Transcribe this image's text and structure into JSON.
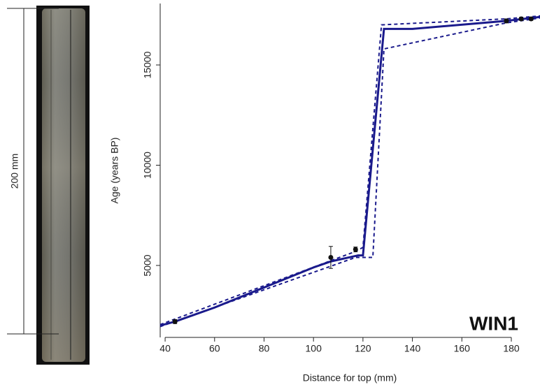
{
  "photo": {
    "scale_label": "200 mm"
  },
  "chart_data": {
    "type": "line",
    "x_label": "Distance for top (mm)",
    "y_label": "Age (years BP)",
    "annotation": "WIN1",
    "xlim": [
      38,
      191.6
    ],
    "ylim": [
      1411,
      18066
    ],
    "xticks": [
      40,
      60,
      80,
      100,
      120,
      140,
      160,
      180
    ],
    "yticks": [
      5000,
      10000,
      15000
    ],
    "series": [
      {
        "color": "#1a1a8c",
        "dashed": false,
        "x": [
          38,
          44,
          60,
          80,
          100,
          107,
          118,
          120,
          128.5,
          140,
          178,
          192
        ],
        "values": [
          2000,
          2200,
          2900,
          3900,
          4900,
          5200,
          5500,
          5500,
          16800,
          16800,
          17200,
          17400
        ]
      },
      {
        "color": "#1a1a8c",
        "dashed": true,
        "x": [
          38,
          117,
          120,
          127.5,
          178,
          192
        ],
        "values": [
          2050,
          5700,
          5900,
          17000,
          17300,
          17450
        ]
      },
      {
        "color": "#1a1a8c",
        "dashed": true,
        "x": [
          38,
          117,
          124,
          128.5,
          178,
          192
        ],
        "values": [
          1950,
          5400,
          5400,
          15800,
          17100,
          17350
        ]
      }
    ],
    "points": {
      "color": "#111111",
      "x": [
        44,
        107,
        117,
        178,
        184,
        188
      ],
      "values": [
        2200,
        5400,
        5800,
        17200,
        17300,
        17300
      ],
      "errors": [
        100,
        550,
        120,
        100,
        80,
        80
      ]
    }
  }
}
